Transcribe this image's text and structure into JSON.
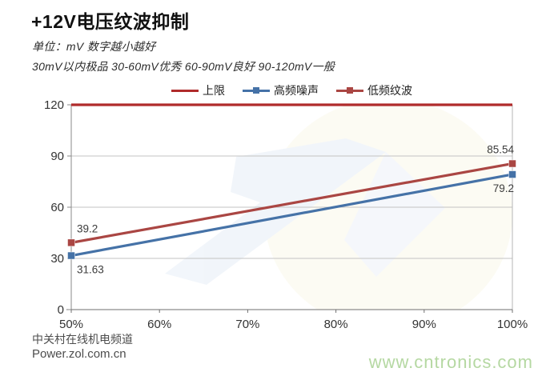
{
  "title": "+12V电压纹波抑制",
  "subtitle_unit": "单位：mV  数字越小越好",
  "subtitle_scale": "30mV以内极品  30-60mV优秀  60-90mV良好  90-120mV一般",
  "footer": {
    "line1": "中关村在线机电频道",
    "line2": "Power.zol.com.cn"
  },
  "watermark": "www.cntronics.com",
  "colors": {
    "limit": "#b02b2b",
    "high_freq": "#4572a7",
    "low_freq": "#aa4643",
    "grid": "#c3c3c3",
    "axis": "#8a8a8a",
    "x_axis": "#6f6f6f",
    "tick_label": "#333333",
    "data_label": "#3c3c3c",
    "watermark_green": "#b5d8a2"
  },
  "chart_data": {
    "type": "line",
    "x": [
      50,
      100
    ],
    "x_unit": "%",
    "x_tick_percents": [
      50,
      60,
      70,
      80,
      90,
      100
    ],
    "x_tick_labels": [
      "50%",
      "60%",
      "70%",
      "80%",
      "90%",
      "100%"
    ],
    "ylim": [
      0,
      120
    ],
    "y_ticks": [
      0,
      30,
      60,
      90,
      120
    ],
    "grid": true,
    "legend_position": "top",
    "series": [
      {
        "name": "上限",
        "role": "limit",
        "color": "#b02b2b",
        "values": [
          120,
          120
        ],
        "marker": false,
        "labels": null,
        "label_side": null
      },
      {
        "name": "高频噪声",
        "role": "data",
        "color": "#4572a7",
        "values": [
          31.63,
          79.2
        ],
        "marker": true,
        "labels": [
          "31.63",
          "79.2"
        ],
        "label_side": "below"
      },
      {
        "name": "低频纹波",
        "role": "data",
        "color": "#aa4643",
        "values": [
          39.2,
          85.54
        ],
        "marker": true,
        "labels": [
          "39.2",
          "85.54"
        ],
        "label_side": "above"
      }
    ]
  }
}
